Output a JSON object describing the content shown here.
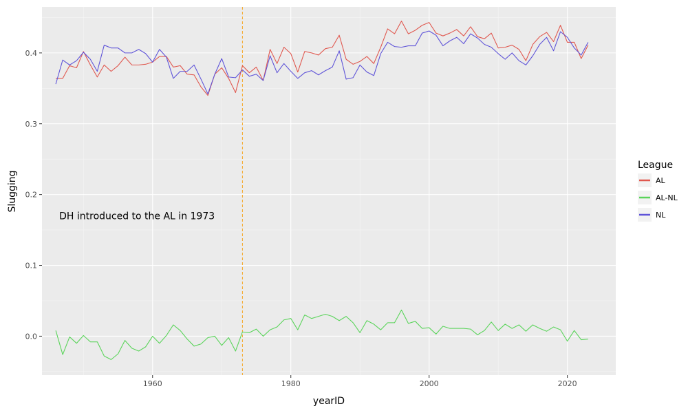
{
  "chart_data": {
    "type": "line",
    "xlabel": "yearID",
    "ylabel": "Slugging",
    "xlim": [
      1944,
      2027
    ],
    "ylim": [
      -0.055,
      0.465
    ],
    "x_ticks": [
      1960,
      1980,
      2000,
      2020
    ],
    "y_ticks": [
      0.0,
      0.1,
      0.2,
      0.3,
      0.4
    ],
    "x_tick_labels": [
      "1960",
      "1980",
      "2000",
      "2020"
    ],
    "y_tick_labels": [
      "0.0",
      "0.1",
      "0.2",
      "0.3",
      "0.4"
    ],
    "grid": true,
    "legend": {
      "title": "League",
      "placement": "right",
      "entries": [
        {
          "name": "AL",
          "color": "#e0584f"
        },
        {
          "name": "AL-NL",
          "color": "#5ad45a"
        },
        {
          "name": "NL",
          "color": "#5f54d8"
        }
      ]
    },
    "annotations": [
      {
        "text": "DH introduced to the AL in 1973",
        "x": 1946.5,
        "y": 0.17
      },
      {
        "type": "vline",
        "x": 1973,
        "color": "#f5a623",
        "style": "dashed"
      }
    ],
    "x": [
      1946,
      1947,
      1948,
      1949,
      1950,
      1951,
      1952,
      1953,
      1954,
      1955,
      1956,
      1957,
      1958,
      1959,
      1960,
      1961,
      1962,
      1963,
      1964,
      1965,
      1966,
      1967,
      1968,
      1969,
      1970,
      1971,
      1972,
      1973,
      1974,
      1975,
      1976,
      1977,
      1978,
      1979,
      1980,
      1981,
      1982,
      1983,
      1984,
      1985,
      1986,
      1987,
      1988,
      1989,
      1990,
      1991,
      1992,
      1993,
      1994,
      1995,
      1996,
      1997,
      1998,
      1999,
      2000,
      2001,
      2002,
      2003,
      2004,
      2005,
      2006,
      2007,
      2008,
      2009,
      2010,
      2011,
      2012,
      2013,
      2014,
      2015,
      2016,
      2017,
      2018,
      2019,
      2020,
      2021,
      2022,
      2023
    ],
    "series": [
      {
        "name": "AL",
        "color": "#e0584f",
        "values": [
          0.364,
          0.364,
          0.382,
          0.379,
          0.402,
          0.383,
          0.366,
          0.383,
          0.374,
          0.382,
          0.394,
          0.383,
          0.383,
          0.384,
          0.387,
          0.395,
          0.395,
          0.38,
          0.382,
          0.37,
          0.369,
          0.352,
          0.34,
          0.37,
          0.379,
          0.364,
          0.344,
          0.382,
          0.372,
          0.38,
          0.361,
          0.405,
          0.385,
          0.408,
          0.399,
          0.373,
          0.402,
          0.4,
          0.397,
          0.406,
          0.408,
          0.425,
          0.391,
          0.384,
          0.388,
          0.395,
          0.385,
          0.408,
          0.434,
          0.427,
          0.445,
          0.427,
          0.432,
          0.439,
          0.443,
          0.428,
          0.424,
          0.428,
          0.433,
          0.424,
          0.437,
          0.423,
          0.42,
          0.428,
          0.407,
          0.408,
          0.411,
          0.405,
          0.389,
          0.412,
          0.423,
          0.429,
          0.416,
          0.439,
          0.415,
          0.415,
          0.392,
          0.411
        ]
      },
      {
        "name": "AL-NL",
        "color": "#5ad45a",
        "values": [
          0.008,
          -0.026,
          -0.001,
          -0.01,
          0.001,
          -0.008,
          -0.008,
          -0.028,
          -0.033,
          -0.025,
          -0.006,
          -0.017,
          -0.021,
          -0.015,
          0.0,
          -0.01,
          0.001,
          0.016,
          0.008,
          -0.004,
          -0.014,
          -0.011,
          -0.002,
          0.0,
          -0.013,
          -0.002,
          -0.021,
          0.006,
          0.005,
          0.01,
          0.0,
          0.009,
          0.013,
          0.023,
          0.025,
          0.009,
          0.03,
          0.025,
          0.028,
          0.031,
          0.028,
          0.022,
          0.028,
          0.019,
          0.005,
          0.022,
          0.017,
          0.009,
          0.019,
          0.019,
          0.037,
          0.018,
          0.021,
          0.011,
          0.012,
          0.003,
          0.014,
          0.011,
          0.011,
          0.011,
          0.01,
          0.002,
          0.008,
          0.02,
          0.008,
          0.017,
          0.011,
          0.016,
          0.007,
          0.016,
          0.011,
          0.007,
          0.013,
          0.009,
          -0.007,
          0.008,
          -0.005,
          -0.004
        ]
      },
      {
        "name": "NL",
        "color": "#5f54d8",
        "values": [
          0.356,
          0.39,
          0.383,
          0.389,
          0.401,
          0.391,
          0.374,
          0.411,
          0.407,
          0.407,
          0.4,
          0.4,
          0.405,
          0.399,
          0.387,
          0.405,
          0.394,
          0.364,
          0.374,
          0.374,
          0.383,
          0.363,
          0.342,
          0.37,
          0.392,
          0.366,
          0.365,
          0.376,
          0.367,
          0.37,
          0.361,
          0.396,
          0.372,
          0.385,
          0.374,
          0.364,
          0.372,
          0.375,
          0.369,
          0.375,
          0.38,
          0.403,
          0.363,
          0.365,
          0.383,
          0.373,
          0.368,
          0.399,
          0.415,
          0.409,
          0.408,
          0.41,
          0.41,
          0.428,
          0.431,
          0.425,
          0.41,
          0.417,
          0.422,
          0.413,
          0.427,
          0.421,
          0.412,
          0.408,
          0.399,
          0.391,
          0.4,
          0.389,
          0.383,
          0.396,
          0.412,
          0.422,
          0.403,
          0.43,
          0.422,
          0.407,
          0.397,
          0.415
        ]
      }
    ]
  }
}
